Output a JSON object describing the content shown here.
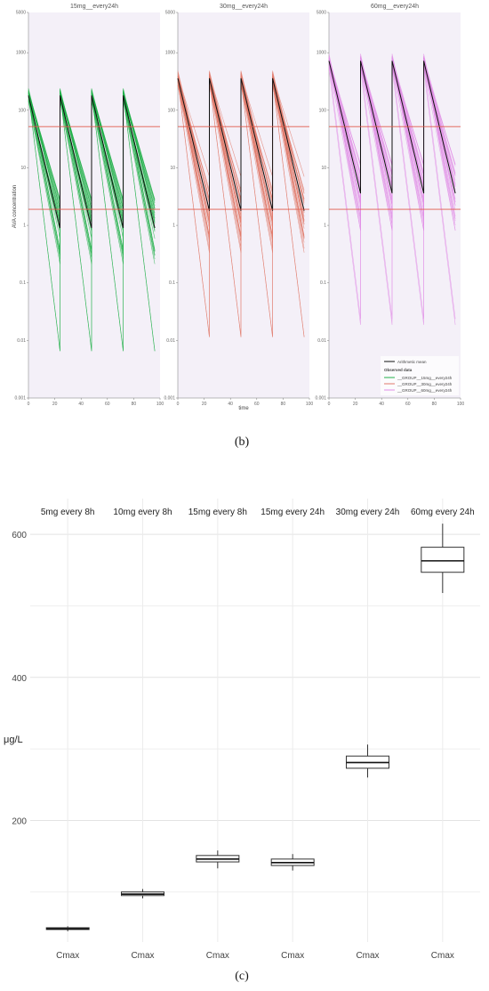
{
  "captions": {
    "b": "(b)",
    "c": "(c)"
  },
  "chart_data": [
    {
      "type": "line",
      "subplot_titles": [
        "15mg__every24h",
        "30mg__every24h",
        "60mg__every24h"
      ],
      "xlabel": "time",
      "ylabel": "AVA concentration",
      "yscale": "log",
      "ylim": [
        0.001,
        5000
      ],
      "xlim": [
        0,
        100
      ],
      "x_ticks": [
        "0",
        "20",
        "40",
        "60",
        "80",
        "100"
      ],
      "y_ticks": [
        "0.001",
        "0.01",
        "0.1",
        "1",
        "10",
        "100",
        "1000",
        "5000"
      ],
      "dose_times": [
        0,
        24,
        48,
        72
      ],
      "reference_lines": [
        52,
        1.9
      ],
      "reference_line_color": "#e05a4a",
      "panels": [
        {
          "title": "15mg__every24h",
          "color": "#22b04a",
          "peak": 180,
          "trough_mean": 0.9,
          "trough_min": 0.006
        },
        {
          "title": "30mg__every24h",
          "color": "#e07a6a",
          "peak": 360,
          "trough_mean": 1.8,
          "trough_min": 0.012
        },
        {
          "title": "60mg__every24h",
          "color": "#e08ce6",
          "peak": 720,
          "trough_mean": 3.6,
          "trough_min": 0.025
        }
      ],
      "legend": {
        "position": "bottom-right",
        "mean_label": "Arithmetic mean",
        "observed_header": "Observed data",
        "entries": [
          {
            "label": "__GROUP__15mg__every24h",
            "color": "#22b04a"
          },
          {
            "label": "__GROUP__30mg__every24h",
            "color": "#e07a6a"
          },
          {
            "label": "__GROUP__60mg__every24h",
            "color": "#e08ce6"
          }
        ]
      },
      "mean_color": "#111111"
    },
    {
      "type": "box",
      "ylabel": "μg/L",
      "ylim": [
        30,
        650
      ],
      "y_ticks": [
        200,
        400,
        600
      ],
      "categories": [
        "5mg every 8h",
        "10mg every 8h",
        "15mg every 8h",
        "15mg every 24h",
        "30mg every 24h",
        "60mg every 24h"
      ],
      "x_tick_label": "Cmax",
      "boxes": [
        {
          "group": "5mg every 8h",
          "min": 45,
          "q1": 47.5,
          "median": 48.5,
          "q3": 50,
          "max": 52
        },
        {
          "group": "10mg every 8h",
          "min": 91,
          "q1": 95,
          "median": 97,
          "q3": 100,
          "max": 104
        },
        {
          "group": "15mg every 8h",
          "min": 133,
          "q1": 142,
          "median": 146,
          "q3": 151,
          "max": 158
        },
        {
          "group": "15mg every 24h",
          "min": 130,
          "q1": 137,
          "median": 141,
          "q3": 146,
          "max": 153
        },
        {
          "group": "30mg every 24h",
          "min": 260,
          "q1": 273,
          "median": 281,
          "q3": 290,
          "max": 306
        },
        {
          "group": "60mg every 24h",
          "min": 518,
          "q1": 547,
          "median": 563,
          "q3": 582,
          "max": 615
        }
      ],
      "grid": true
    }
  ]
}
